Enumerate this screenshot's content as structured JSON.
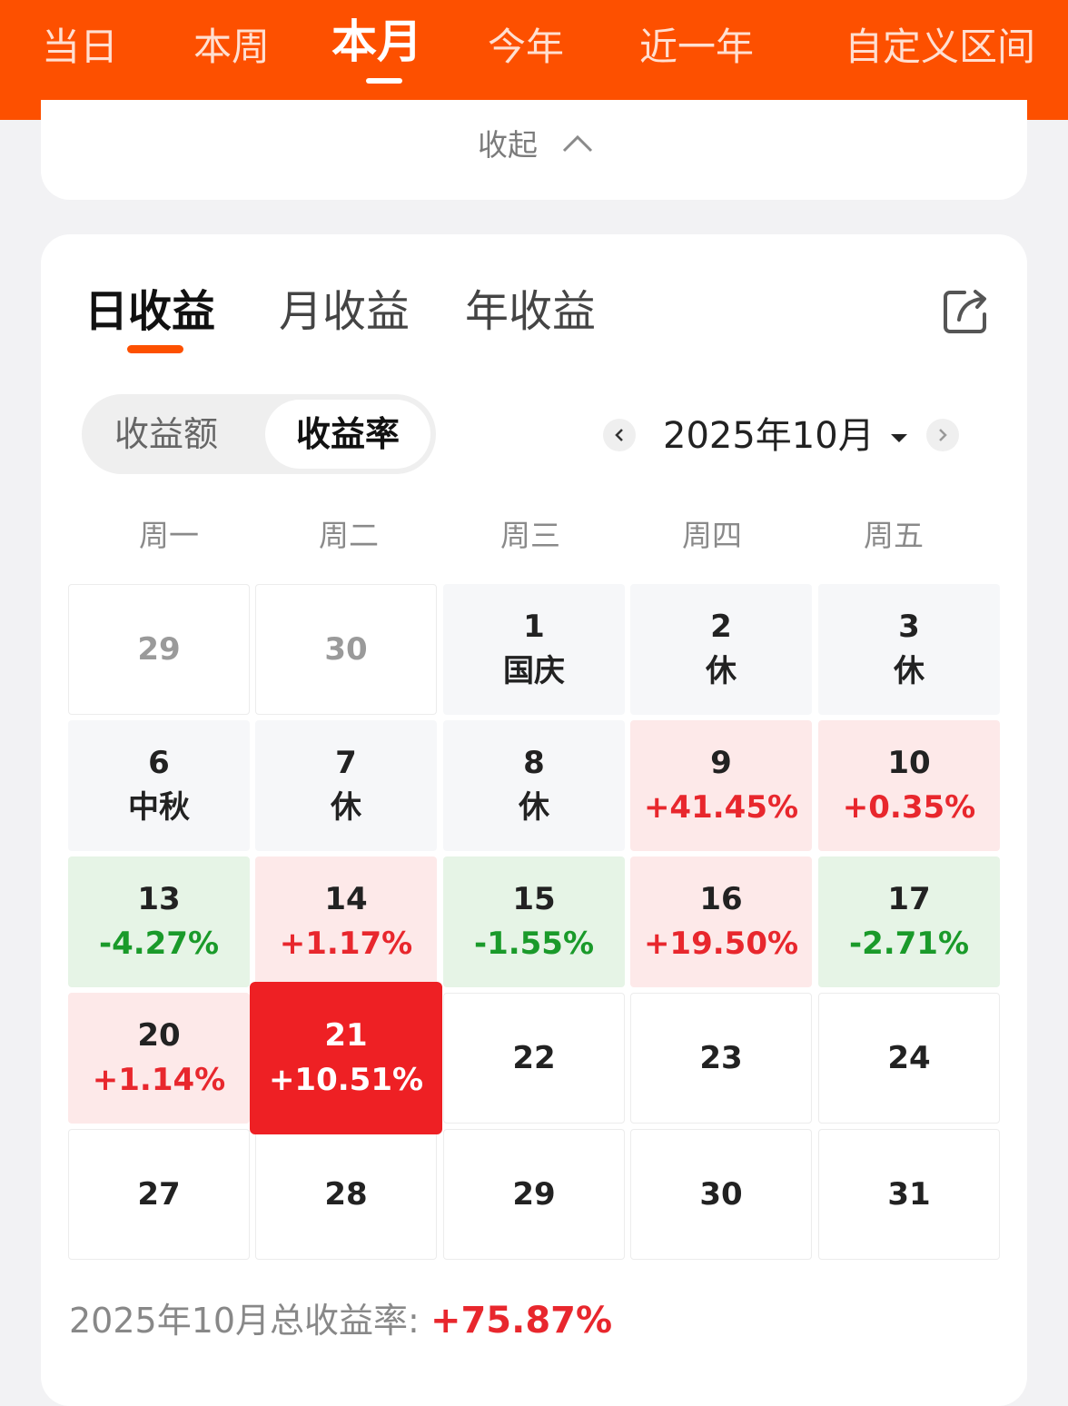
{
  "period_tabs": [
    "当日",
    "本周",
    "本月",
    "今年",
    "近一年",
    "自定义区间"
  ],
  "active_period": "本月",
  "collapse_label": "收起",
  "earnings_tabs": [
    "日收益",
    "月收益",
    "年收益"
  ],
  "active_earnings_tab": "日收益",
  "toggle": {
    "amount_label": "收益额",
    "rate_label": "收益率",
    "selected": "收益率"
  },
  "month_label": "2025年10月",
  "weekdays": [
    "周一",
    "周二",
    "周三",
    "周四",
    "周五"
  ],
  "calendar": [
    [
      {
        "day": "29",
        "sub": "",
        "state": "prev"
      },
      {
        "day": "30",
        "sub": "",
        "state": "prev"
      },
      {
        "day": "1",
        "sub": "国庆",
        "state": "holiday"
      },
      {
        "day": "2",
        "sub": "休",
        "state": "holiday"
      },
      {
        "day": "3",
        "sub": "休",
        "state": "holiday"
      }
    ],
    [
      {
        "day": "6",
        "sub": "中秋",
        "state": "holiday"
      },
      {
        "day": "7",
        "sub": "休",
        "state": "holiday"
      },
      {
        "day": "8",
        "sub": "休",
        "state": "holiday"
      },
      {
        "day": "9",
        "sub": "+41.45%",
        "state": "up"
      },
      {
        "day": "10",
        "sub": "+0.35%",
        "state": "up"
      }
    ],
    [
      {
        "day": "13",
        "sub": "-4.27%",
        "state": "down"
      },
      {
        "day": "14",
        "sub": "+1.17%",
        "state": "up"
      },
      {
        "day": "15",
        "sub": "-1.55%",
        "state": "down"
      },
      {
        "day": "16",
        "sub": "+19.50%",
        "state": "up"
      },
      {
        "day": "17",
        "sub": "-2.71%",
        "state": "down"
      }
    ],
    [
      {
        "day": "20",
        "sub": "+1.14%",
        "state": "up"
      },
      {
        "day": "21",
        "sub": "+10.51%",
        "state": "today"
      },
      {
        "day": "22",
        "sub": "",
        "state": "future"
      },
      {
        "day": "23",
        "sub": "",
        "state": "future"
      },
      {
        "day": "24",
        "sub": "",
        "state": "future"
      }
    ],
    [
      {
        "day": "27",
        "sub": "",
        "state": "future"
      },
      {
        "day": "28",
        "sub": "",
        "state": "future"
      },
      {
        "day": "29",
        "sub": "",
        "state": "future"
      },
      {
        "day": "30",
        "sub": "",
        "state": "future"
      },
      {
        "day": "31",
        "sub": "",
        "state": "future"
      }
    ]
  ],
  "total": {
    "label": "2025年10月总收益率: ",
    "value": "+75.87%"
  },
  "colors": {
    "brand_orange": "#fd5000",
    "gain_red": "#e8272d",
    "loss_green": "#1a9a2a",
    "today_red": "#ee2024"
  },
  "icons": [
    "collapse-chevron-up-icon",
    "share-export-icon",
    "prev-month-chevron-icon",
    "next-month-chevron-icon",
    "month-dropdown-caret-icon"
  ]
}
